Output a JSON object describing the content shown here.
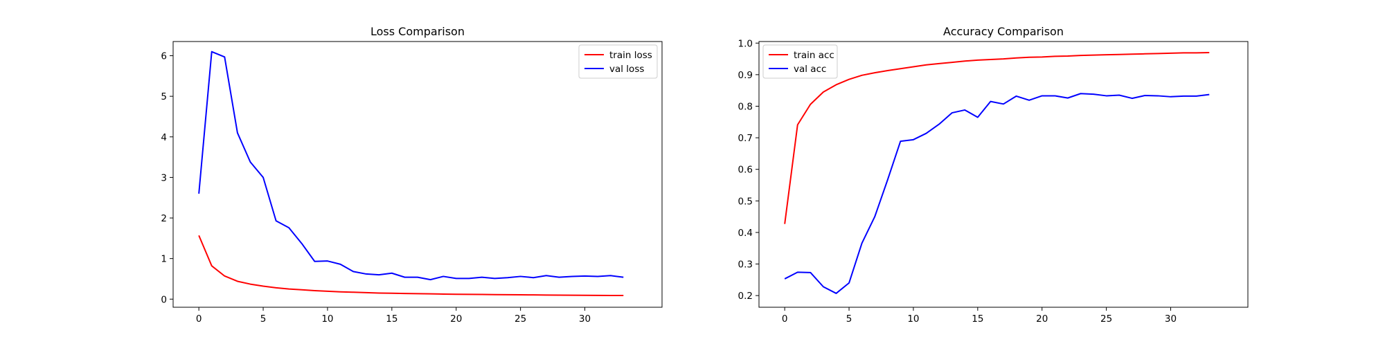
{
  "chart_data": [
    {
      "type": "line",
      "title": "Loss Comparison",
      "xlabel": "",
      "ylabel": "",
      "xlim": [
        -2,
        36
      ],
      "ylim": [
        -0.2,
        6.35
      ],
      "xticks": [
        0,
        5,
        10,
        15,
        20,
        25,
        30
      ],
      "yticks": [
        0,
        1,
        2,
        3,
        4,
        5,
        6
      ],
      "tick_labels_x": [
        "0",
        "5",
        "10",
        "15",
        "20",
        "25",
        "30"
      ],
      "tick_labels_y": [
        "0",
        "1",
        "2",
        "3",
        "4",
        "5",
        "6"
      ],
      "grid": false,
      "legend_position": "top-right",
      "x": [
        0,
        1,
        2,
        3,
        4,
        5,
        6,
        7,
        8,
        9,
        10,
        11,
        12,
        13,
        14,
        15,
        16,
        17,
        18,
        19,
        20,
        21,
        22,
        23,
        24,
        25,
        26,
        27,
        28,
        29,
        30,
        31,
        32,
        33
      ],
      "series": [
        {
          "name": "train loss",
          "color": "#ff0000",
          "values": [
            1.57,
            0.82,
            0.57,
            0.44,
            0.37,
            0.32,
            0.28,
            0.25,
            0.23,
            0.21,
            0.195,
            0.18,
            0.17,
            0.16,
            0.15,
            0.145,
            0.14,
            0.135,
            0.13,
            0.125,
            0.12,
            0.118,
            0.115,
            0.112,
            0.11,
            0.107,
            0.104,
            0.101,
            0.099,
            0.097,
            0.095,
            0.093,
            0.091,
            0.089
          ]
        },
        {
          "name": "val loss",
          "color": "#0000ff",
          "values": [
            2.6,
            6.1,
            5.97,
            4.1,
            3.38,
            3.0,
            1.93,
            1.76,
            1.37,
            0.93,
            0.94,
            0.86,
            0.68,
            0.62,
            0.6,
            0.64,
            0.54,
            0.54,
            0.48,
            0.56,
            0.51,
            0.51,
            0.54,
            0.51,
            0.53,
            0.56,
            0.53,
            0.58,
            0.54,
            0.56,
            0.57,
            0.56,
            0.58,
            0.54
          ]
        }
      ]
    },
    {
      "type": "line",
      "title": "Accuracy Comparison",
      "xlabel": "",
      "ylabel": "",
      "xlim": [
        -2,
        36
      ],
      "ylim": [
        0.163,
        1.005
      ],
      "xticks": [
        0,
        5,
        10,
        15,
        20,
        25,
        30
      ],
      "yticks": [
        0.2,
        0.3,
        0.4,
        0.5,
        0.6,
        0.7,
        0.8,
        0.9,
        1.0
      ],
      "tick_labels_x": [
        "0",
        "5",
        "10",
        "15",
        "20",
        "25",
        "30"
      ],
      "tick_labels_y": [
        "0.2",
        "0.3",
        "0.4",
        "0.5",
        "0.6",
        "0.7",
        "0.8",
        "0.9",
        "1.0"
      ],
      "grid": false,
      "legend_position": "top-left",
      "x": [
        0,
        1,
        2,
        3,
        4,
        5,
        6,
        7,
        8,
        9,
        10,
        11,
        12,
        13,
        14,
        15,
        16,
        17,
        18,
        19,
        20,
        21,
        22,
        23,
        24,
        25,
        26,
        27,
        28,
        29,
        30,
        31,
        32,
        33
      ],
      "series": [
        {
          "name": "train acc",
          "color": "#ff0000",
          "values": [
            0.427,
            0.741,
            0.806,
            0.845,
            0.868,
            0.885,
            0.898,
            0.906,
            0.913,
            0.919,
            0.925,
            0.931,
            0.935,
            0.939,
            0.943,
            0.946,
            0.948,
            0.95,
            0.953,
            0.955,
            0.956,
            0.958,
            0.959,
            0.961,
            0.962,
            0.963,
            0.964,
            0.965,
            0.966,
            0.967,
            0.968,
            0.969,
            0.969,
            0.97
          ]
        },
        {
          "name": "val acc",
          "color": "#0000ff",
          "values": [
            0.253,
            0.274,
            0.273,
            0.228,
            0.207,
            0.24,
            0.366,
            0.45,
            0.567,
            0.689,
            0.694,
            0.714,
            0.743,
            0.779,
            0.788,
            0.765,
            0.815,
            0.807,
            0.832,
            0.819,
            0.833,
            0.833,
            0.826,
            0.84,
            0.838,
            0.833,
            0.835,
            0.825,
            0.834,
            0.833,
            0.83,
            0.832,
            0.832,
            0.837
          ]
        }
      ]
    }
  ]
}
